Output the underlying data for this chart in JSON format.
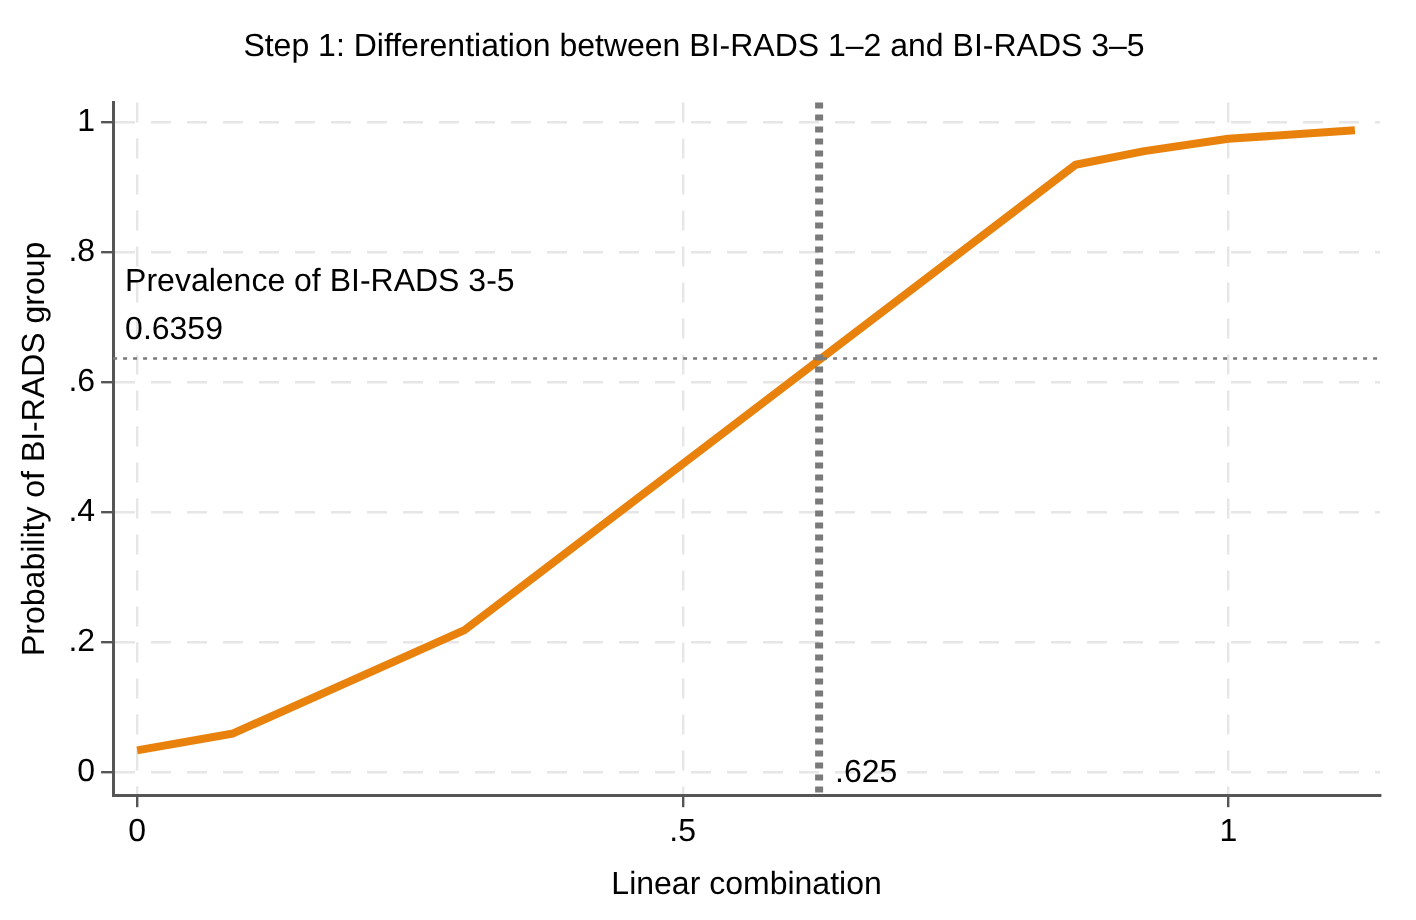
{
  "chart_data": {
    "type": "line",
    "title": "Step 1: Differentiation between BI-RADS 1–2 and BI-RADS 3–5",
    "xlabel": "Linear combination",
    "ylabel": "Probability of BI-RADS group",
    "x": [
      0,
      0.088,
      0.3,
      0.86,
      0.923,
      1,
      1.116
    ],
    "series": [
      {
        "color": "#e8820c",
        "values": [
          0.033,
          0.059,
          0.218,
          0.934,
          0.955,
          0.974,
          0.987
        ]
      }
    ],
    "xlim": [
      -0.022,
      1.139
    ],
    "ylim": [
      -0.036,
      1.03
    ],
    "xticks": [
      0,
      {
        "value": 0.5,
        "label": ".5"
      },
      1
    ],
    "yticks": [
      0,
      {
        "value": 0.2,
        "label": ".2"
      },
      {
        "value": 0.4,
        "label": ".4"
      },
      {
        "value": 0.6,
        "label": ".6"
      },
      {
        "value": 0.8,
        "label": ".8"
      },
      1
    ],
    "ref_lines": [
      {
        "axis": "x",
        "value": 0.625,
        "label": ".625",
        "line_style": "dotted",
        "color": "#7a7a7a"
      },
      {
        "axis": "y",
        "value": 0.6359,
        "label": "Prevalence of BI-RADS 3-5\n0.6359",
        "line_style": "dotted",
        "color": "#7a7a7a"
      }
    ],
    "grid": true,
    "legend": false,
    "marker": "none",
    "line_style": "solid"
  }
}
